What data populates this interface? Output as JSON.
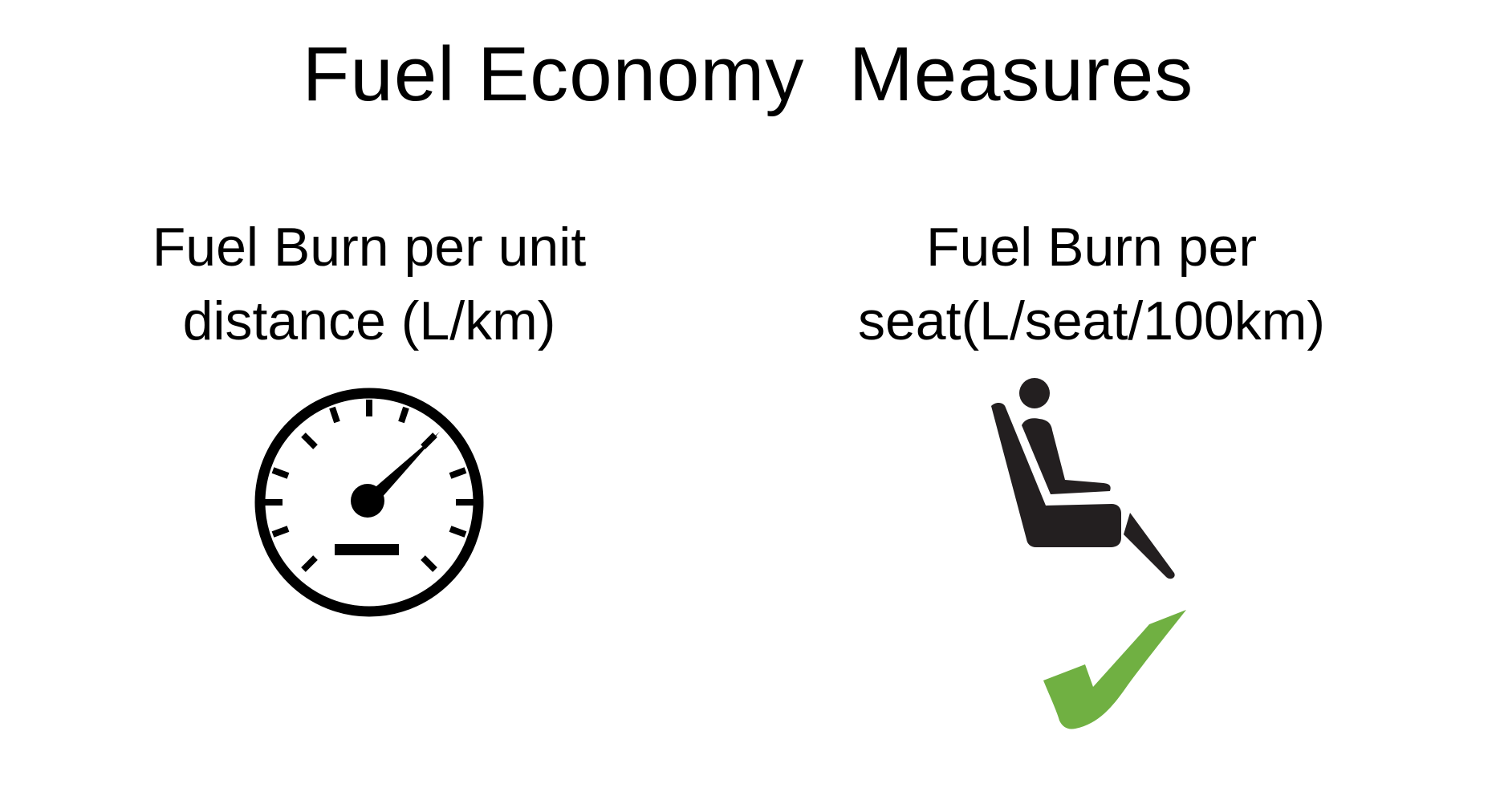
{
  "title": "Fuel Economy  Measures",
  "measures": [
    {
      "line1": "Fuel Burn per unit",
      "line2": "distance (L/km)",
      "icon": "speedometer-icon"
    },
    {
      "line1": "Fuel Burn per",
      "line2": "seat(L/seat/100km)",
      "icon": "airplane-seat-icon"
    }
  ],
  "check_icon": "checkmark-icon",
  "colors": {
    "text": "#000000",
    "seat": "#231f20",
    "check": "#70b042"
  }
}
